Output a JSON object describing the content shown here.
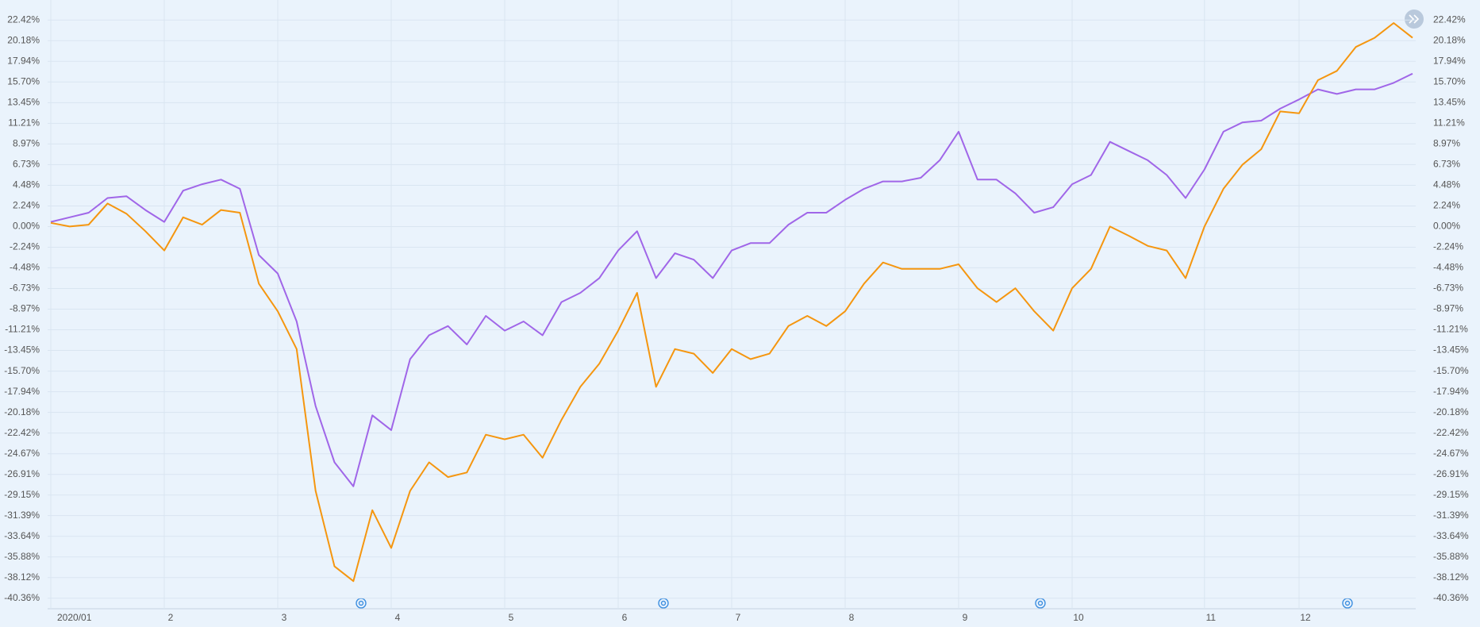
{
  "chart_data": {
    "type": "line",
    "categories": [
      "2020/01",
      null,
      null,
      null,
      null,
      null,
      "2",
      null,
      null,
      null,
      null,
      null,
      "3",
      null,
      null,
      null,
      null,
      null,
      "4",
      null,
      null,
      null,
      null,
      null,
      "5",
      null,
      null,
      null,
      null,
      null,
      "6",
      null,
      null,
      null,
      null,
      null,
      "7",
      null,
      null,
      null,
      null,
      null,
      "8",
      null,
      null,
      null,
      null,
      null,
      "9",
      null,
      null,
      null,
      null,
      null,
      "10",
      null,
      null,
      null,
      null,
      null,
      null,
      "11",
      null,
      null,
      null,
      null,
      "12",
      null,
      null,
      null,
      null,
      null,
      null
    ],
    "series": [
      {
        "color": "#a066e8",
        "values": [
          0.5,
          1.0,
          1.5,
          3.1,
          3.3,
          1.8,
          0.5,
          3.9,
          4.6,
          5.1,
          4.1,
          -3.1,
          -5.1,
          -10.3,
          -19.5,
          -25.6,
          -28.2,
          -20.5,
          -22.1,
          -14.4,
          -11.8,
          -10.8,
          -12.8,
          -9.7,
          -11.3,
          -10.3,
          -11.8,
          -8.2,
          -7.2,
          -5.6,
          -2.6,
          -0.5,
          -5.6,
          -2.9,
          -3.6,
          -5.6,
          -2.6,
          -1.8,
          -1.8,
          0.2,
          1.5,
          1.5,
          2.9,
          4.1,
          4.9,
          4.9,
          5.3,
          7.2,
          10.3,
          5.1,
          5.1,
          3.6,
          1.5,
          2.1,
          4.6,
          5.6,
          9.2,
          8.2,
          7.2,
          5.6,
          3.1,
          6.2,
          10.3,
          11.3,
          11.5,
          12.8,
          13.8,
          14.9,
          14.4,
          14.9,
          14.9,
          15.6,
          16.6
        ]
      },
      {
        "color": "#f5960f",
        "values": [
          0.4,
          0.0,
          0.2,
          2.5,
          1.4,
          -0.5,
          -2.6,
          1.0,
          0.2,
          1.8,
          1.5,
          -6.2,
          -9.2,
          -13.3,
          -28.7,
          -36.9,
          -38.5,
          -30.8,
          -34.9,
          -28.7,
          -25.6,
          -27.2,
          -26.7,
          -22.6,
          -23.1,
          -22.6,
          -25.1,
          -21.0,
          -17.4,
          -14.9,
          -11.3,
          -7.2,
          -17.4,
          -13.3,
          -13.8,
          -15.9,
          -13.3,
          -14.4,
          -13.8,
          -10.8,
          -9.7,
          -10.8,
          -9.2,
          -6.2,
          -3.9,
          -4.6,
          -4.6,
          -4.6,
          -4.1,
          -6.7,
          -8.2,
          -6.7,
          -9.2,
          -11.3,
          -6.7,
          -4.6,
          0.0,
          -1.0,
          -2.1,
          -2.6,
          -5.6,
          0.0,
          4.1,
          6.7,
          8.4,
          12.5,
          12.3,
          15.9,
          16.9,
          19.5,
          20.5,
          22.1,
          20.5
        ]
      }
    ],
    "ylim": [
      -41.5,
      24.6
    ],
    "yticks": [
      {
        "value": 22.42,
        "label": "22.42%"
      },
      {
        "value": 20.18,
        "label": "20.18%"
      },
      {
        "value": 17.94,
        "label": "17.94%"
      },
      {
        "value": 15.7,
        "label": "15.70%"
      },
      {
        "value": 13.45,
        "label": "13.45%"
      },
      {
        "value": 11.21,
        "label": "11.21%"
      },
      {
        "value": 8.97,
        "label": "8.97%"
      },
      {
        "value": 6.73,
        "label": "6.73%"
      },
      {
        "value": 4.48,
        "label": "4.48%"
      },
      {
        "value": 2.24,
        "label": "2.24%"
      },
      {
        "value": 0,
        "label": "0.00%"
      },
      {
        "value": -2.24,
        "label": "-2.24%"
      },
      {
        "value": -4.48,
        "label": "-4.48%"
      },
      {
        "value": -6.73,
        "label": "-6.73%"
      },
      {
        "value": -8.97,
        "label": "-8.97%"
      },
      {
        "value": -11.21,
        "label": "-11.21%"
      },
      {
        "value": -13.45,
        "label": "-13.45%"
      },
      {
        "value": -15.7,
        "label": "-15.70%"
      },
      {
        "value": -17.94,
        "label": "-17.94%"
      },
      {
        "value": -20.18,
        "label": "-20.18%"
      },
      {
        "value": -22.42,
        "label": "-22.42%"
      },
      {
        "value": -24.67,
        "label": "-24.67%"
      },
      {
        "value": -26.91,
        "label": "-26.91%"
      },
      {
        "value": -29.15,
        "label": "-29.15%"
      },
      {
        "value": -31.39,
        "label": "-31.39%"
      },
      {
        "value": -33.64,
        "label": "-33.64%"
      },
      {
        "value": -35.88,
        "label": "-35.88%"
      },
      {
        "value": -38.12,
        "label": "-38.12%"
      },
      {
        "value": -40.36,
        "label": "-40.36%"
      }
    ],
    "grid": true
  }
}
